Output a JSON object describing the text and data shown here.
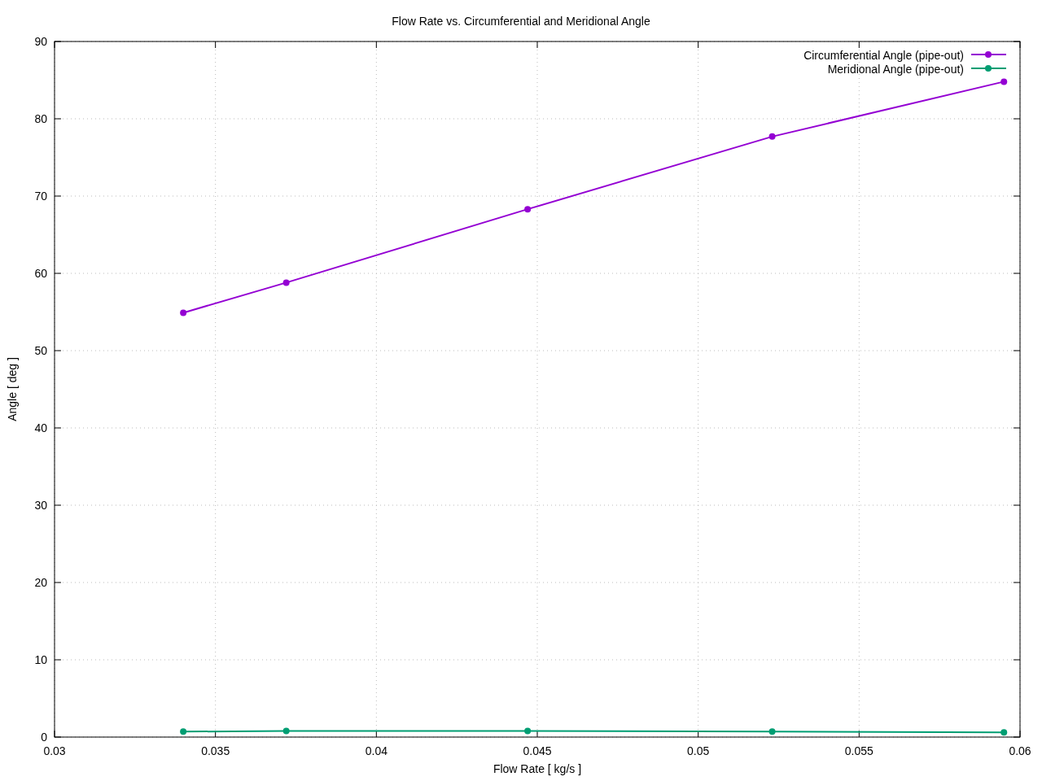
{
  "chart_data": {
    "type": "line",
    "title": "Flow Rate vs. Circumferential and Meridional Angle",
    "xlabel": "Flow Rate [ kg/s ]",
    "ylabel": "Angle [ deg ]",
    "x": [
      0.034,
      0.0372,
      0.0447,
      0.0523,
      0.0595
    ],
    "series": [
      {
        "name": "Circumferential Angle (pipe-out)",
        "color": "#9400d3",
        "values": [
          54.9,
          58.8,
          68.3,
          77.7,
          84.8
        ]
      },
      {
        "name": "Meridional Angle (pipe-out)",
        "color": "#009e73",
        "values": [
          0.7,
          0.8,
          0.8,
          0.7,
          0.6
        ]
      }
    ],
    "xlim": [
      0.03,
      0.06
    ],
    "xticks": [
      0.03,
      0.035,
      0.04,
      0.045,
      0.05,
      0.055,
      0.06
    ],
    "ylim": [
      0,
      90
    ],
    "yticks": [
      0,
      10,
      20,
      30,
      40,
      50,
      60,
      70,
      80,
      90
    ],
    "grid": true,
    "legend": "top right",
    "marker": "circle",
    "line_style": "solid"
  }
}
